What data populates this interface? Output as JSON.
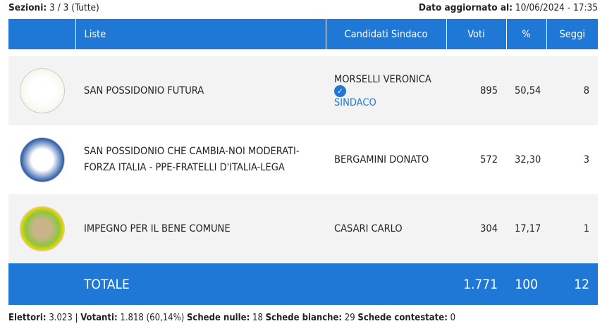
{
  "header": {
    "sezioni_label": "Sezioni:",
    "sezioni_value": "3 / 3 (Tutte)",
    "updated_label": "Dato aggiornato al:",
    "updated_value": "10/06/2024 - 17:35"
  },
  "columns": [
    "",
    "Liste",
    "Candidati Sindaco",
    "Voti",
    "%",
    "Seggi"
  ],
  "rows": [
    {
      "logo": "SAN POSSIDONIO FUTURA",
      "lista": "SAN POSSIDONIO FUTURA",
      "candidato": "MORSELLI VERONICA",
      "elected": "SINDACO",
      "voti": "895",
      "perc": "50,54",
      "seggi": "8"
    },
    {
      "logo": "SAN POSSIDONIO CHE CAMBIA",
      "lista": "SAN POSSIDONIO CHE CAMBIA-NOI MODERATI-FORZA ITALIA - PPE-FRATELLI D'ITALIA-LEGA",
      "candidato": "BERGAMINI DONATO",
      "voti": "572",
      "perc": "32,30",
      "seggi": "3"
    },
    {
      "logo": "Impegno per il bene comune San Possidonio",
      "lista": "IMPEGNO PER IL BENE COMUNE",
      "candidato": "CASARI CARLO",
      "voti": "304",
      "perc": "17,17",
      "seggi": "1"
    }
  ],
  "total": {
    "label": "TOTALE",
    "voti": "1.771",
    "perc": "100",
    "seggi": "12"
  },
  "footer": {
    "elettori_label": "Elettori:",
    "elettori": "3.023 |",
    "votanti_label": "Votanti:",
    "votanti": "1.818 (60,14%)",
    "nulle_label": "Schede nulle:",
    "nulle": "18",
    "bianche_label": "Schede bianche:",
    "bianche": "29",
    "contestate_label": "Schede contestate:",
    "contestate": "0"
  },
  "colors": {
    "accent": "#1f78d6"
  }
}
